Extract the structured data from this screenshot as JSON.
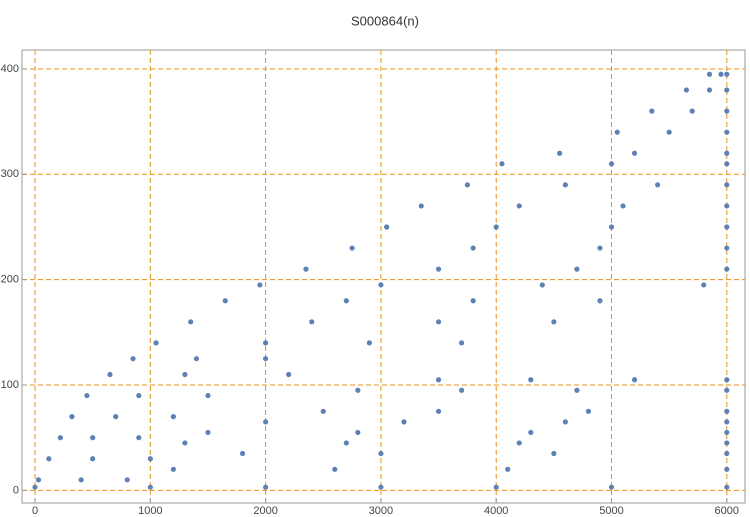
{
  "chart_data": {
    "type": "scatter",
    "title": "S000864(n)",
    "color": "#5e81b5",
    "grid": true,
    "grid_color": "#e8921e",
    "xlim": [
      -113,
      6158
    ],
    "ylim": [
      -12,
      418
    ],
    "xticks": [
      0,
      1000,
      2000,
      3000,
      4000,
      5000,
      6000
    ],
    "yticks": [
      0,
      100,
      200,
      300,
      400
    ],
    "x": [
      5850,
      5950,
      6000,
      5650,
      5850,
      6000,
      5350,
      5700,
      6000,
      5050,
      5500,
      6000,
      4550,
      5200,
      6000,
      4050,
      5000,
      6000,
      3750,
      4600,
      5400,
      6000,
      3350,
      4200,
      5100,
      6000,
      3050,
      4000,
      5000,
      6000,
      2750,
      3800,
      4900,
      6000,
      2350,
      3500,
      4700,
      6000,
      1950,
      3000,
      4400,
      5800,
      1650,
      2700,
      3800,
      4900,
      1350,
      2400,
      3500,
      4500,
      1050,
      2000,
      2900,
      3700,
      850,
      1400,
      2000,
      650,
      1300,
      2200,
      450,
      900,
      1500,
      320,
      700,
      1200,
      220,
      500,
      900,
      120,
      500,
      1000,
      30,
      400,
      800,
      3500,
      4300,
      5200,
      6000,
      2800,
      3700,
      4700,
      6000,
      2500,
      3500,
      4800,
      6000,
      2000,
      3200,
      4600,
      6000,
      1500,
      2800,
      4300,
      6000,
      1300,
      2700,
      4200,
      6000,
      1800,
      3000,
      4500,
      6000,
      1200,
      2600,
      4100,
      6000,
      0,
      1000,
      2000,
      3000,
      4000,
      5000,
      6000
    ],
    "values": [
      395,
      395,
      395,
      380,
      380,
      380,
      360,
      360,
      360,
      340,
      340,
      340,
      320,
      320,
      320,
      310,
      310,
      310,
      290,
      290,
      290,
      290,
      270,
      270,
      270,
      270,
      250,
      250,
      250,
      250,
      230,
      230,
      230,
      230,
      210,
      210,
      210,
      210,
      195,
      195,
      195,
      195,
      180,
      180,
      180,
      180,
      160,
      160,
      160,
      160,
      140,
      140,
      140,
      140,
      125,
      125,
      125,
      110,
      110,
      110,
      90,
      90,
      90,
      70,
      70,
      70,
      50,
      50,
      50,
      30,
      30,
      30,
      10,
      10,
      10,
      105,
      105,
      105,
      105,
      95,
      95,
      95,
      95,
      75,
      75,
      75,
      75,
      65,
      65,
      65,
      65,
      55,
      55,
      55,
      55,
      45,
      45,
      45,
      45,
      35,
      35,
      35,
      35,
      20,
      20,
      20,
      20,
      3,
      3,
      3,
      3,
      3,
      3,
      3
    ]
  }
}
